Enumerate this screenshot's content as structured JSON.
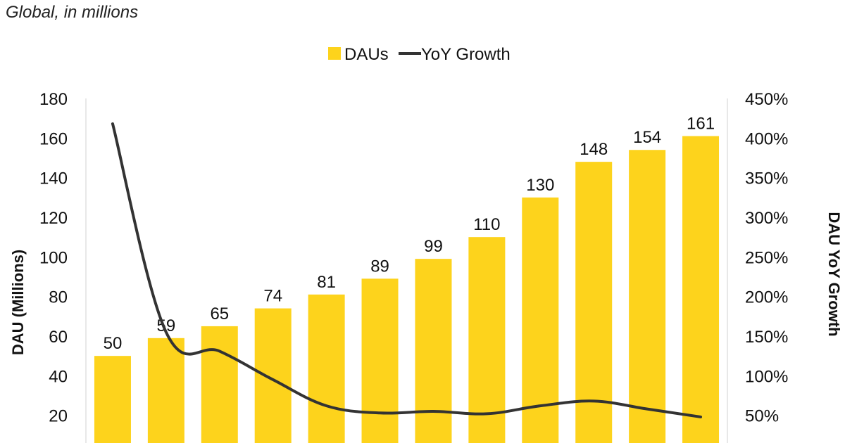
{
  "subtitle": "Global, in millions",
  "colors": {
    "bar": "#FDD31C",
    "line": "#333333",
    "axis": "#D0D0D0"
  },
  "legend": {
    "bars": "DAUs",
    "line": "YoY Growth"
  },
  "chart_data": {
    "type": "bar",
    "title": "",
    "subtitle": "Global, in millions",
    "ylabel": "DAU (Millions)",
    "y2label": "DAU YoY Growth",
    "ylim": [
      0,
      180
    ],
    "y2lim": [
      0,
      4.5
    ],
    "yticks": [
      20,
      40,
      60,
      80,
      100,
      120,
      140,
      160,
      180
    ],
    "y2ticks": [
      "50%",
      "100%",
      "150%",
      "200%",
      "250%",
      "300%",
      "350%",
      "400%",
      "450%"
    ],
    "legend_position": "top-center",
    "series": [
      {
        "name": "DAUs",
        "type": "bar",
        "values": [
          50,
          59,
          65,
          74,
          81,
          89,
          99,
          110,
          130,
          148,
          154,
          161
        ]
      },
      {
        "name": "YoY Growth",
        "type": "line",
        "values": [
          4.18,
          1.55,
          1.31,
          0.95,
          0.62,
          0.53,
          0.55,
          0.52,
          0.62,
          0.68,
          0.58,
          0.48
        ]
      }
    ]
  }
}
